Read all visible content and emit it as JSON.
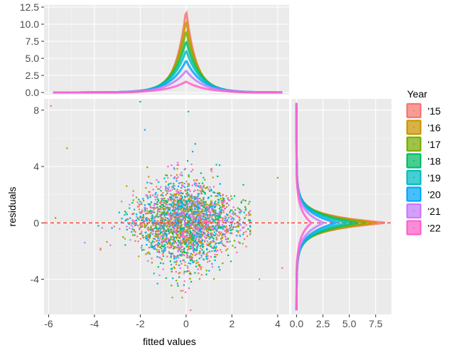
{
  "chart_data": [
    {
      "panel": "scatter",
      "type": "scatter",
      "xlabel": "fitted values",
      "ylabel": "residuals",
      "x_ticks": [
        "-6",
        "-4",
        "-2",
        "0",
        "2",
        "4"
      ],
      "y_ticks": [
        "-4",
        "0",
        "4",
        "8"
      ],
      "xlim": [
        -6.2,
        4.5
      ],
      "ylim": [
        -6.5,
        8.8
      ],
      "reference_line": {
        "y": 0,
        "style": "dashed",
        "color": "#ff3b30"
      },
      "point_cloud": {
        "center": [
          0,
          0
        ],
        "x_sd": 1.1,
        "y_sd_at_center": 1.7,
        "outliers": [
          {
            "x": -5.9,
            "y": 8.3
          },
          {
            "x": -5.2,
            "y": 5.3
          },
          {
            "x": -5.7,
            "y": 0.35
          },
          {
            "x": -2.0,
            "y": 8.6
          },
          {
            "x": 0.1,
            "y": 7.9
          },
          {
            "x": -1.8,
            "y": 6.6
          },
          {
            "x": 3.2,
            "y": -4.0
          },
          {
            "x": 4.2,
            "y": -3.2
          },
          {
            "x": 0.2,
            "y": -6.2
          },
          {
            "x": -0.6,
            "y": -5.3
          },
          {
            "x": 4.0,
            "y": 3.2
          },
          {
            "x": 2.5,
            "y": 2.7
          }
        ]
      }
    },
    {
      "panel": "top-density",
      "type": "line",
      "description_axis": "density of fitted values by year",
      "y_ticks": [
        "0.0",
        "2.5",
        "5.0",
        "7.5",
        "10.0",
        "12.5"
      ],
      "ylim": [
        0,
        12.5
      ],
      "xlim": [
        -6.2,
        4.5
      ],
      "x_extent": [
        -5.8,
        4.2
      ],
      "series": [
        {
          "name": "'15",
          "peak": 12.1,
          "width": 0.1
        },
        {
          "name": "'16",
          "peak": 10.6,
          "width": 0.11
        },
        {
          "name": "'17",
          "peak": 9.1,
          "width": 0.12
        },
        {
          "name": "'18",
          "peak": 7.6,
          "width": 0.13
        },
        {
          "name": "'19",
          "peak": 6.2,
          "width": 0.14
        },
        {
          "name": "'20",
          "peak": 4.7,
          "width": 0.15
        },
        {
          "name": "'21",
          "peak": 3.2,
          "width": 0.16
        },
        {
          "name": "'22",
          "peak": 1.6,
          "width": 0.18
        }
      ]
    },
    {
      "panel": "right-density",
      "type": "line",
      "description_axis": "density of residuals by year",
      "x_ticks": [
        "0.0",
        "2.5",
        "5.0",
        "7.5"
      ],
      "xlim": [
        -0.5,
        9.0
      ],
      "ylim": [
        -6.5,
        8.8
      ],
      "y_extent": [
        -6.2,
        8.5
      ],
      "series": [
        {
          "name": "'15",
          "peak": 8.6,
          "width": 0.12
        },
        {
          "name": "'16",
          "peak": 7.7,
          "width": 0.13
        },
        {
          "name": "'17",
          "peak": 6.8,
          "width": 0.14
        },
        {
          "name": "'18",
          "peak": 5.8,
          "width": 0.15
        },
        {
          "name": "'19",
          "peak": 4.8,
          "width": 0.16
        },
        {
          "name": "'20",
          "peak": 3.8,
          "width": 0.17
        },
        {
          "name": "'21",
          "peak": 2.6,
          "width": 0.18
        },
        {
          "name": "'22",
          "peak": 1.4,
          "width": 0.2
        }
      ]
    }
  ],
  "legend": {
    "title": "Year",
    "placement": "right",
    "items": [
      {
        "label": "'15",
        "color": "#f8766d"
      },
      {
        "label": "'16",
        "color": "#cd9600"
      },
      {
        "label": "'17",
        "color": "#7cae00"
      },
      {
        "label": "'18",
        "color": "#00be67"
      },
      {
        "label": "'19",
        "color": "#00bfc4"
      },
      {
        "label": "'20",
        "color": "#00a9ff"
      },
      {
        "label": "'21",
        "color": "#c77cff"
      },
      {
        "label": "'22",
        "color": "#ff61cc"
      }
    ]
  },
  "colors": {
    "panel_bg": "#ebebeb",
    "grid_major": "#ffffff",
    "grid_minor": "#f5f5f5",
    "axis_text": "#4d4d4d",
    "reference_line": "#ff3b30"
  }
}
